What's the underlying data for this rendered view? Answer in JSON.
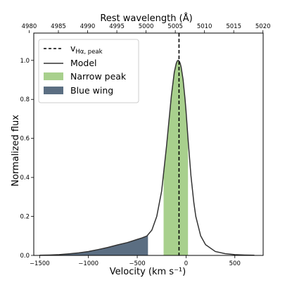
{
  "chart_data": {
    "type": "area",
    "xlabel": "Velocity (km s⁻¹)",
    "top_xlabel": "Rest wavelength (Å)",
    "ylabel": "Normalized flux",
    "xlim": [
      -1560,
      790
    ],
    "ylim": [
      0,
      1.14
    ],
    "x_ticks": [
      -1500,
      -1000,
      -500,
      0,
      500
    ],
    "x_tick_labels": [
      "−1500",
      "−1000",
      "−500",
      "0",
      "500"
    ],
    "top_ticks": [
      4980,
      4985,
      4990,
      4995,
      5000,
      5005,
      5010,
      5015,
      5020
    ],
    "top_tick_labels": [
      "4980",
      "4985",
      "4990",
      "4995",
      "5000",
      "5005",
      "5010",
      "5015",
      "5020"
    ],
    "top_axis_reference_wavelength": 5006.84,
    "y_ticks": [
      0.0,
      0.2,
      0.4,
      0.6,
      0.8,
      1.0
    ],
    "y_tick_labels": [
      "0.0",
      "0.2",
      "0.4",
      "0.6",
      "0.8",
      "1.0"
    ],
    "grid": false,
    "legend_position": "top-left",
    "legend": {
      "vline": "v",
      "vline_sub": "Hα, peak",
      "model": "Model",
      "narrow": "Narrow peak",
      "blue": "Blue wing"
    },
    "vline_x": -72,
    "narrow_peak_range": [
      -230,
      20
    ],
    "blue_wing_range": [
      -1500,
      -390
    ],
    "series": [
      {
        "name": "Model",
        "x": [
          -1500,
          -1400,
          -1300,
          -1200,
          -1100,
          -1000,
          -900,
          -800,
          -700,
          -600,
          -500,
          -450,
          -400,
          -350,
          -300,
          -250,
          -200,
          -150,
          -120,
          -100,
          -90,
          -80,
          -70,
          -60,
          -50,
          -30,
          -10,
          0,
          20,
          50,
          80,
          100,
          150,
          200,
          300,
          400,
          500,
          600,
          700
        ],
        "values": [
          0.001,
          0.002,
          0.004,
          0.008,
          0.013,
          0.02,
          0.03,
          0.041,
          0.054,
          0.066,
          0.082,
          0.09,
          0.1,
          0.13,
          0.2,
          0.33,
          0.56,
          0.82,
          0.94,
          0.985,
          0.997,
          1.0,
          0.996,
          0.985,
          0.965,
          0.9,
          0.8,
          0.74,
          0.6,
          0.41,
          0.27,
          0.2,
          0.1,
          0.055,
          0.02,
          0.009,
          0.004,
          0.002,
          0.001
        ]
      }
    ],
    "colors": {
      "narrow": "#a8d08d",
      "blue": "#5b6e82",
      "line": "#333333",
      "vline": "#000000"
    }
  }
}
